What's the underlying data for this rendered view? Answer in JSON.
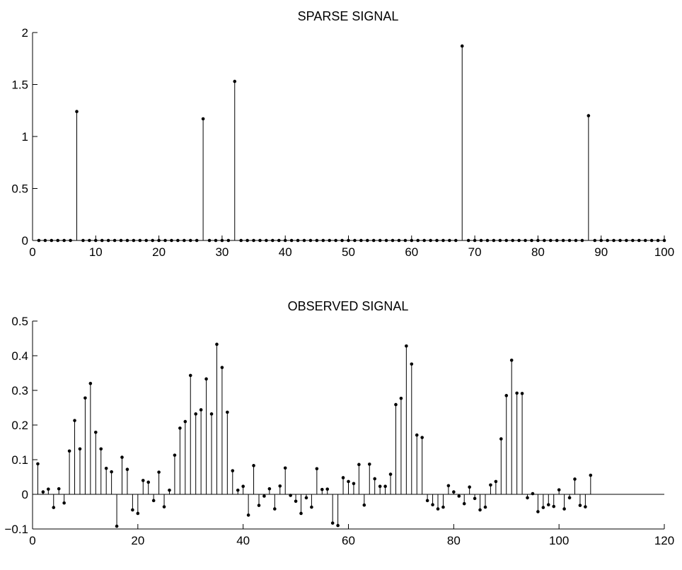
{
  "chart_data": [
    {
      "type": "stem",
      "title": "SPARSE SIGNAL",
      "xlabel": "",
      "ylabel": "",
      "xlim": [
        0,
        100
      ],
      "ylim": [
        0,
        2
      ],
      "xticks": [
        0,
        10,
        20,
        30,
        40,
        50,
        60,
        70,
        80,
        90,
        100
      ],
      "yticks": [
        0,
        0.5,
        1,
        1.5,
        2
      ],
      "xtick_labels": [
        "0",
        "10",
        "20",
        "30",
        "40",
        "50",
        "60",
        "70",
        "80",
        "90",
        "100"
      ],
      "ytick_labels": [
        "0",
        "0.5",
        "1",
        "1.5",
        "2"
      ],
      "grid": false,
      "x": [
        1,
        2,
        3,
        4,
        5,
        6,
        7,
        8,
        9,
        10,
        11,
        12,
        13,
        14,
        15,
        16,
        17,
        18,
        19,
        20,
        21,
        22,
        23,
        24,
        25,
        26,
        27,
        28,
        29,
        30,
        31,
        32,
        33,
        34,
        35,
        36,
        37,
        38,
        39,
        40,
        41,
        42,
        43,
        44,
        45,
        46,
        47,
        48,
        49,
        50,
        51,
        52,
        53,
        54,
        55,
        56,
        57,
        58,
        59,
        60,
        61,
        62,
        63,
        64,
        65,
        66,
        67,
        68,
        69,
        70,
        71,
        72,
        73,
        74,
        75,
        76,
        77,
        78,
        79,
        80,
        81,
        82,
        83,
        84,
        85,
        86,
        87,
        88,
        89,
        90,
        91,
        92,
        93,
        94,
        95,
        96,
        97,
        98,
        99,
        100
      ],
      "values": [
        0,
        0,
        0,
        0,
        0,
        0,
        1.24,
        0,
        0,
        0,
        0,
        0,
        0,
        0,
        0,
        0,
        0,
        0,
        0,
        0,
        0,
        0,
        0,
        0,
        0,
        0,
        1.17,
        0,
        0,
        0,
        0,
        1.53,
        0,
        0,
        0,
        0,
        0,
        0,
        0,
        0,
        0,
        0,
        0,
        0,
        0,
        0,
        0,
        0,
        0,
        0,
        0,
        0,
        0,
        0,
        0,
        0,
        0,
        0,
        0,
        0,
        0,
        0,
        0,
        0,
        0,
        0,
        0,
        1.87,
        0,
        0,
        0,
        0,
        0,
        0,
        0,
        0,
        0,
        0,
        0,
        0,
        0,
        0,
        0,
        0,
        0,
        0,
        0,
        1.2,
        0,
        0,
        0,
        0,
        0,
        0,
        0,
        0,
        0,
        0,
        0,
        0
      ]
    },
    {
      "type": "stem",
      "title": "OBSERVED SIGNAL",
      "xlabel": "",
      "ylabel": "",
      "xlim": [
        0,
        120
      ],
      "ylim": [
        -0.1,
        0.5
      ],
      "xticks": [
        0,
        20,
        40,
        60,
        80,
        100,
        120
      ],
      "yticks": [
        -0.1,
        0,
        0.1,
        0.2,
        0.3,
        0.4,
        0.5
      ],
      "xtick_labels": [
        "0",
        "20",
        "40",
        "60",
        "80",
        "100",
        "120"
      ],
      "ytick_labels": [
        "−0.1",
        "0",
        "0.1",
        "0.2",
        "0.3",
        "0.4",
        "0.5"
      ],
      "grid": false,
      "x": [
        1,
        2,
        3,
        4,
        5,
        6,
        7,
        8,
        9,
        10,
        11,
        12,
        13,
        14,
        15,
        16,
        17,
        18,
        19,
        20,
        21,
        22,
        23,
        24,
        25,
        26,
        27,
        28,
        29,
        30,
        31,
        32,
        33,
        34,
        35,
        36,
        37,
        38,
        39,
        40,
        41,
        42,
        43,
        44,
        45,
        46,
        47,
        48,
        49,
        50,
        51,
        52,
        53,
        54,
        55,
        56,
        57,
        58,
        59,
        60,
        61,
        62,
        63,
        64,
        65,
        66,
        67,
        68,
        69,
        70,
        71,
        72,
        73,
        74,
        75,
        76,
        77,
        78,
        79,
        80,
        81,
        82,
        83,
        84,
        85,
        86,
        87,
        88,
        89,
        90,
        91,
        92,
        93,
        94,
        95,
        96,
        97,
        98,
        99,
        100,
        101,
        102,
        103,
        104,
        105,
        106
      ],
      "values": [
        0.088,
        0.007,
        0.015,
        -0.038,
        0.016,
        -0.025,
        0.125,
        0.213,
        0.131,
        0.278,
        0.32,
        0.179,
        0.131,
        0.075,
        0.065,
        -0.092,
        0.107,
        0.072,
        -0.045,
        -0.055,
        0.04,
        0.035,
        -0.018,
        0.064,
        -0.036,
        0.012,
        0.113,
        0.191,
        0.21,
        0.343,
        0.232,
        0.244,
        0.333,
        0.232,
        0.433,
        0.366,
        0.237,
        0.068,
        0.012,
        0.023,
        -0.06,
        0.083,
        -0.032,
        -0.005,
        0.016,
        -0.042,
        0.024,
        0.076,
        -0.003,
        -0.02,
        -0.055,
        -0.01,
        -0.037,
        0.074,
        0.014,
        0.015,
        -0.083,
        -0.09,
        0.048,
        0.037,
        0.031,
        0.086,
        -0.031,
        0.087,
        0.045,
        0.023,
        0.023,
        0.058,
        0.259,
        0.277,
        0.428,
        0.376,
        0.171,
        0.164,
        -0.018,
        -0.03,
        -0.042,
        -0.037,
        0.025,
        0.007,
        -0.005,
        -0.027,
        0.021,
        -0.012,
        -0.045,
        -0.037,
        0.027,
        0.037,
        0.16,
        0.285,
        0.387,
        0.292,
        0.291,
        -0.01,
        0.002,
        -0.05,
        -0.038,
        -0.03,
        -0.035,
        0.013,
        -0.042,
        -0.01,
        0.044,
        -0.032,
        -0.036,
        0.055
      ]
    }
  ]
}
